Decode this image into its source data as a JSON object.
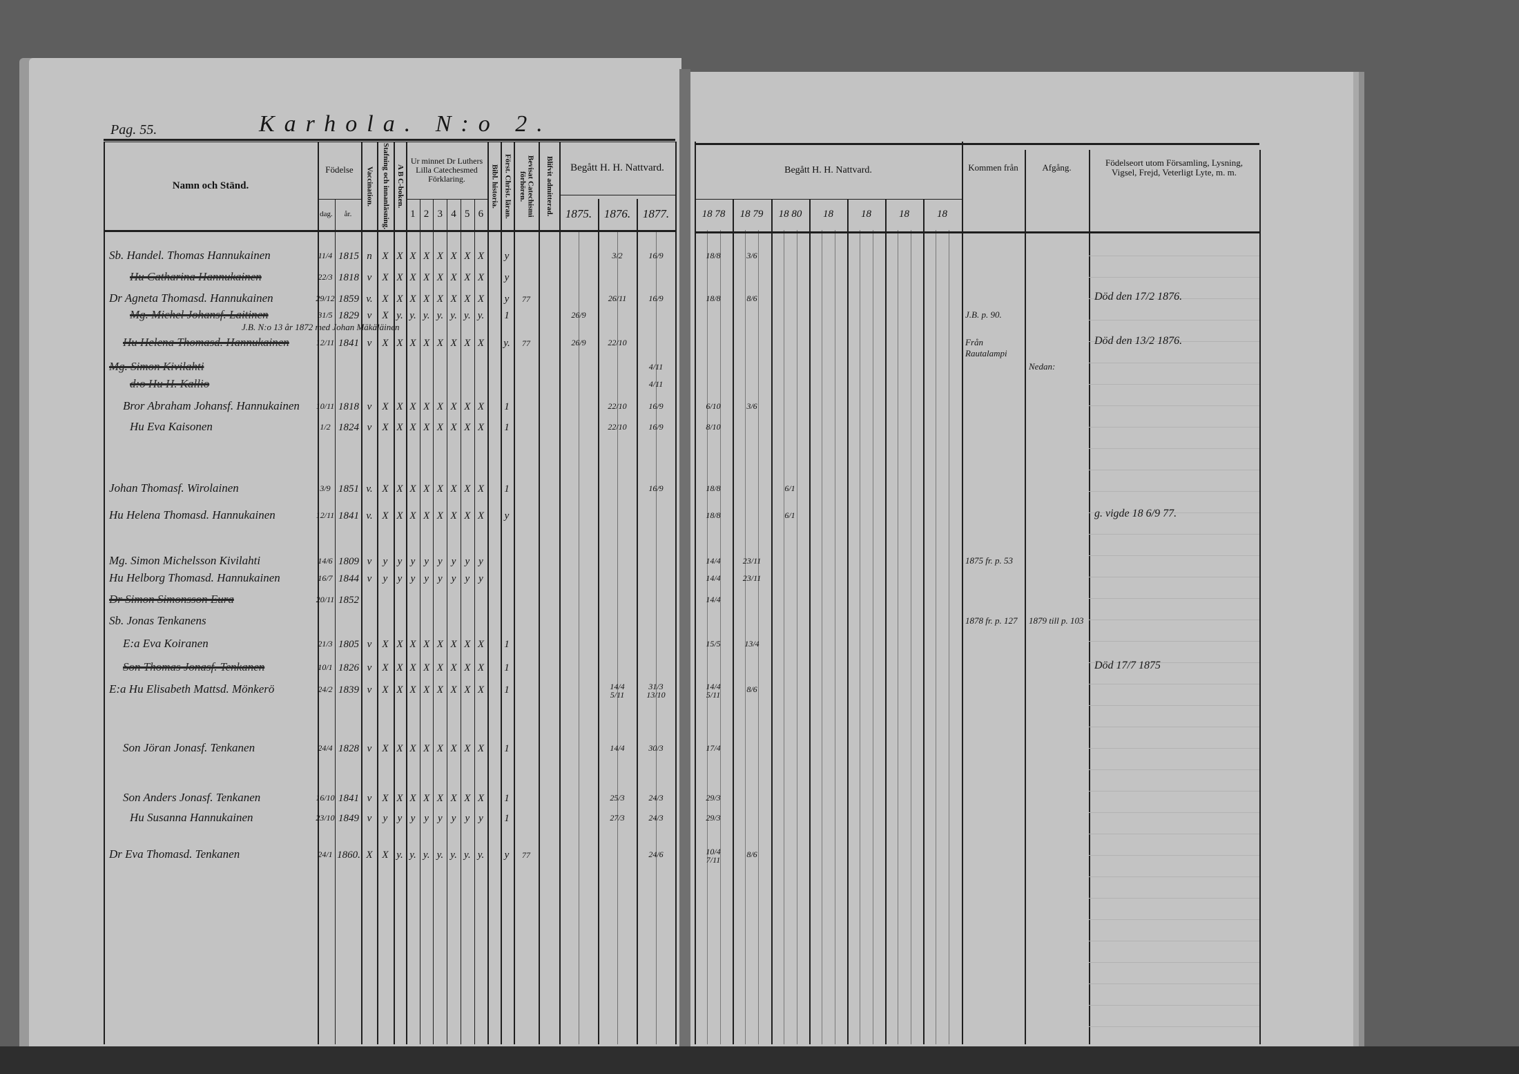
{
  "left_page": {
    "page_ref": "Pag. 55.",
    "village_title": "Karhola. N:o 2.",
    "headers": {
      "name": "Namn och Ständ.",
      "birth": "Födelse",
      "birth_day": "dag.",
      "birth_year": "år.",
      "vaccination": "Vaccination.",
      "spelling": "Stafning och innanläsning.",
      "abc": "A B C-boken.",
      "catechism": "Ur minnet Dr Luthers Lilla Catechesmed Förklaring.",
      "catechism_parts": [
        "1",
        "2",
        "3",
        "4",
        "5",
        "6"
      ],
      "bible_history": "Bibl. historia.",
      "christian_doctrine": "Först. Christ. läran.",
      "catechism_proven": "Bevisat Catechismi förhören.",
      "admitted": "Blifvit admitterad.",
      "communion": "Begått H. H. Nattvard.",
      "years": [
        "1875.",
        "1876.",
        "1877."
      ]
    }
  },
  "right_page": {
    "headers": {
      "communion": "Begått H. H. Nattvard.",
      "years": [
        "18 78",
        "18 79",
        "18 80",
        "18",
        "18",
        "18",
        "18"
      ],
      "came_from": "Kommen från",
      "departure": "Afgång.",
      "remarks": "Födelseort utom Församling, Lysning, Vigsel, Frejd, Veterligt Lyte, m. m."
    }
  },
  "rows": [
    {
      "prefix": "Sb.",
      "name": "Handel. Thomas Hannukainen",
      "struck": false,
      "day": "11/4",
      "year": "1815",
      "vacc": "n",
      "checks": "X X X X X X X X",
      "doctrine": "y",
      "c1876": "3/2",
      "c1877": "16/9",
      "c1878": "18/8",
      "c1879": "3/6"
    },
    {
      "prefix": "",
      "name": "Hu Catharina Hannukainen",
      "struck": true,
      "day": "22/3",
      "year": "1818",
      "vacc": "v",
      "checks": "X X X X X X X X",
      "doctrine": "y"
    },
    {
      "prefix": "Dr",
      "name": "Agneta Thomasd. Hannukainen",
      "struck": false,
      "day": "29/12",
      "year": "1859",
      "vacc": "v.",
      "checks": "X X X X X X X X",
      "doctrine": "y",
      "proven": "77",
      "c1876": "26/11",
      "c1877": "16/9",
      "c1878": "18/8",
      "c1879": "8/6",
      "remarks": "Död den 17/2 1876."
    },
    {
      "prefix": "",
      "name": "Mg. Michel Johansf. Laitinen",
      "struck": true,
      "day": "31/5",
      "year": "1829",
      "vacc": "v",
      "checks": "X y. y. y. y. y. y. y.",
      "doctrine": "1",
      "c1875": "26/9",
      "came_from": "J.B. p. 90."
    },
    {
      "prefix": "",
      "name": "J.B. N:o 13 år 1872 med Johan Mäkäläinen",
      "struck": false,
      "annotation": true
    },
    {
      "prefix": "",
      "name": "Hu Helena Thomasd. Hannukainen",
      "struck": true,
      "day": "12/11",
      "year": "1841",
      "vacc": "v",
      "checks": "X X X X X X X X",
      "doctrine": "y.",
      "proven": "77",
      "c1875": "26/9",
      "c1876": "22/10",
      "came_from": "Från Rautalampi",
      "remarks": "Död den 13/2 1876."
    },
    {
      "prefix": "",
      "name": "Mg. Simon Kivilahti",
      "struck": true,
      "c1877": "4/11",
      "departure": "Nedan:"
    },
    {
      "prefix": "",
      "name": "d:o Hu H. Kallio",
      "struck": true,
      "c1877": "4/11"
    },
    {
      "prefix": "",
      "name": "Bror Abraham Johansf. Hannukainen",
      "struck": false,
      "day": "10/11",
      "year": "1818",
      "vacc": "v",
      "checks": "X X X X X X X X",
      "doctrine": "1",
      "c1876": "22/10",
      "c1877": "16/9",
      "c1878": "6/10",
      "c1879": "3/6"
    },
    {
      "prefix": "",
      "name": "Hu Eva Kaisonen",
      "struck": false,
      "day": "1/2",
      "year": "1824",
      "vacc": "v",
      "checks": "X X X X X X X X",
      "doctrine": "1",
      "c1876": "22/10",
      "c1877": "16/9",
      "c1878": "8/10"
    },
    {
      "prefix": "",
      "name": "Johan Thomasf. Wirolainen",
      "struck": false,
      "day": "3/9",
      "year": "1851",
      "vacc": "v.",
      "checks": "X X X X X X X X",
      "doctrine": "1",
      "c1877": "16/9",
      "c1878": "18/8",
      "c1880": "6/1"
    },
    {
      "prefix": "",
      "name": "Hu Helena Thomasd. Hannukainen",
      "struck": false,
      "day": "12/11",
      "year": "1841",
      "vacc": "v.",
      "checks": "X X X X X X X X",
      "doctrine": "y",
      "c1878": "18/8",
      "c1880": "6/1",
      "remarks": "g. vigde 18 6/9 77."
    },
    {
      "prefix": "",
      "name": "Mg. Simon Michelsson Kivilahti",
      "struck": false,
      "day": "14/6",
      "year": "1809",
      "vacc": "v",
      "checks": "y y y y y y y y",
      "c1878": "14/4",
      "c1879": "23/11",
      "came_from": "1875 fr. p. 53"
    },
    {
      "prefix": "",
      "name": "Hu Helborg Thomasd. Hannukainen",
      "struck": false,
      "day": "16/7",
      "year": "1844",
      "vacc": "v",
      "checks": "y y y y y y y y",
      "c1878": "14/4",
      "c1879": "23/11"
    },
    {
      "prefix": "",
      "name": "Dr Simon Simonsson Eura",
      "struck": true,
      "day": "20/11",
      "year": "1852",
      "c1878": "14/4"
    },
    {
      "prefix": "Sb.",
      "name": "Jonas Tenkanens",
      "struck": false,
      "came_from": "1878 fr. p. 127",
      "departure": "1879 till p. 103"
    },
    {
      "prefix": "E:a",
      "name": "Eva Koiranen",
      "struck": false,
      "day": "21/3",
      "year": "1805",
      "vacc": "v",
      "checks": "X X X X X X X X",
      "doctrine": "1",
      "c1878": "15/5",
      "c1879": "13/4"
    },
    {
      "prefix": "",
      "name": "Son Thomas Jonasf. Tenkanen",
      "struck": true,
      "day": "10/1",
      "year": "1826",
      "vacc": "v",
      "checks": "X X X X X X X X",
      "doctrine": "1",
      "remarks": "Död 17/7 1875"
    },
    {
      "prefix": "E:a",
      "name": "Hu Elisabeth Mattsd. Mönkerö",
      "struck": false,
      "day": "24/2",
      "year": "1839",
      "vacc": "v",
      "checks": "X X X X X X X X",
      "doctrine": "1",
      "c1876": "14/4 5/11",
      "c1877": "31/3 13/10",
      "c1878": "14/4 5/11",
      "c1879": "8/6"
    },
    {
      "prefix": "",
      "name": "Son Jöran Jonasf. Tenkanen",
      "struck": false,
      "day": "24/4",
      "year": "1828",
      "vacc": "v",
      "checks": "X X X X X X X X",
      "doctrine": "1",
      "c1876": "14/4",
      "c1877": "30/3",
      "c1878": "17/4"
    },
    {
      "prefix": "",
      "name": "Son Anders Jonasf. Tenkanen",
      "struck": false,
      "day": "16/10",
      "year": "1841",
      "vacc": "v",
      "checks": "X X X X X X X X",
      "doctrine": "1",
      "c1876": "25/3",
      "c1877": "24/3",
      "c1878": "29/3"
    },
    {
      "prefix": "",
      "name": "Hu Susanna Hannukainen",
      "struck": false,
      "day": "23/10",
      "year": "1849",
      "vacc": "v",
      "checks": "y y y y y y y y",
      "doctrine": "1",
      "c1876": "27/3",
      "c1877": "24/3",
      "c1878": "29/3"
    },
    {
      "prefix": "Dr",
      "name": "Eva Thomasd. Tenkanen",
      "struck": false,
      "day": "24/1",
      "year": "1860.",
      "vacc": "X",
      "checks": "X y. y. y. y. y. y. y.",
      "doctrine": "y",
      "proven": "77",
      "c1877": "24/6",
      "c1878": "10/4 7/11",
      "c1879": "8/6"
    }
  ]
}
